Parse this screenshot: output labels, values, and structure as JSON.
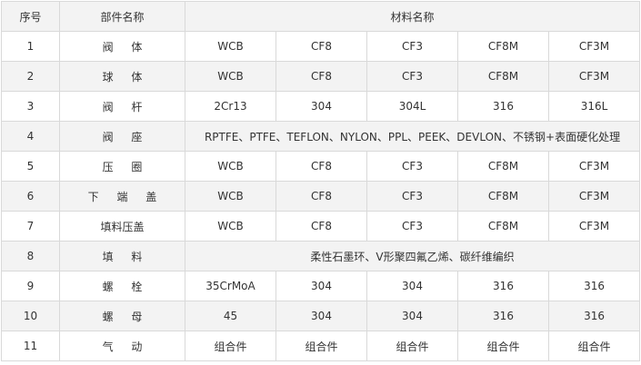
{
  "table": {
    "header": [
      "序号",
      "部件名称",
      "材料名称"
    ],
    "rows": [
      {
        "no": "1",
        "part": "阀 体",
        "materials": [
          "WCB",
          "CF8",
          "CF3",
          "CF8M",
          "CF3M"
        ]
      },
      {
        "no": "2",
        "part": "球 体",
        "materials": [
          "WCB",
          "CF8",
          "CF3",
          "CF8M",
          "CF3M"
        ]
      },
      {
        "no": "3",
        "part": "阀 杆",
        "materials": [
          "2Cr13",
          "304",
          "304L",
          "316",
          "316L"
        ]
      },
      {
        "no": "4",
        "part": "阀 座",
        "materials": [
          "RPTFE、PTFE、TEFLON、NYLON、PPL、PEEK、DEVLON、不锈钢+表面硬化处理"
        ]
      },
      {
        "no": "5",
        "part": "压 圈",
        "materials": [
          "WCB",
          "CF8",
          "CF3",
          "CF8M",
          "CF3M"
        ]
      },
      {
        "no": "6",
        "part": "下 端 盖",
        "materials": [
          "WCB",
          "CF8",
          "CF3",
          "CF8M",
          "CF3M"
        ]
      },
      {
        "no": "7",
        "part": "填料压盖",
        "materials": [
          "WCB",
          "CF8",
          "CF3",
          "CF8M",
          "CF3M"
        ]
      },
      {
        "no": "8",
        "part": "填 料",
        "materials": [
          "柔性石墨环、V形聚四氟乙烯、碳纤维编织"
        ]
      },
      {
        "no": "9",
        "part": "螺 栓",
        "materials": [
          "35CrMoA",
          "304",
          "304",
          "316",
          "316"
        ]
      },
      {
        "no": "10",
        "part": "螺 母",
        "materials": [
          "45",
          "304",
          "304",
          "316",
          "316"
        ]
      },
      {
        "no": "11",
        "part": "气 动",
        "materials": [
          "组合件",
          "组合件",
          "组合件",
          "组合件",
          "组合件"
        ]
      }
    ]
  }
}
